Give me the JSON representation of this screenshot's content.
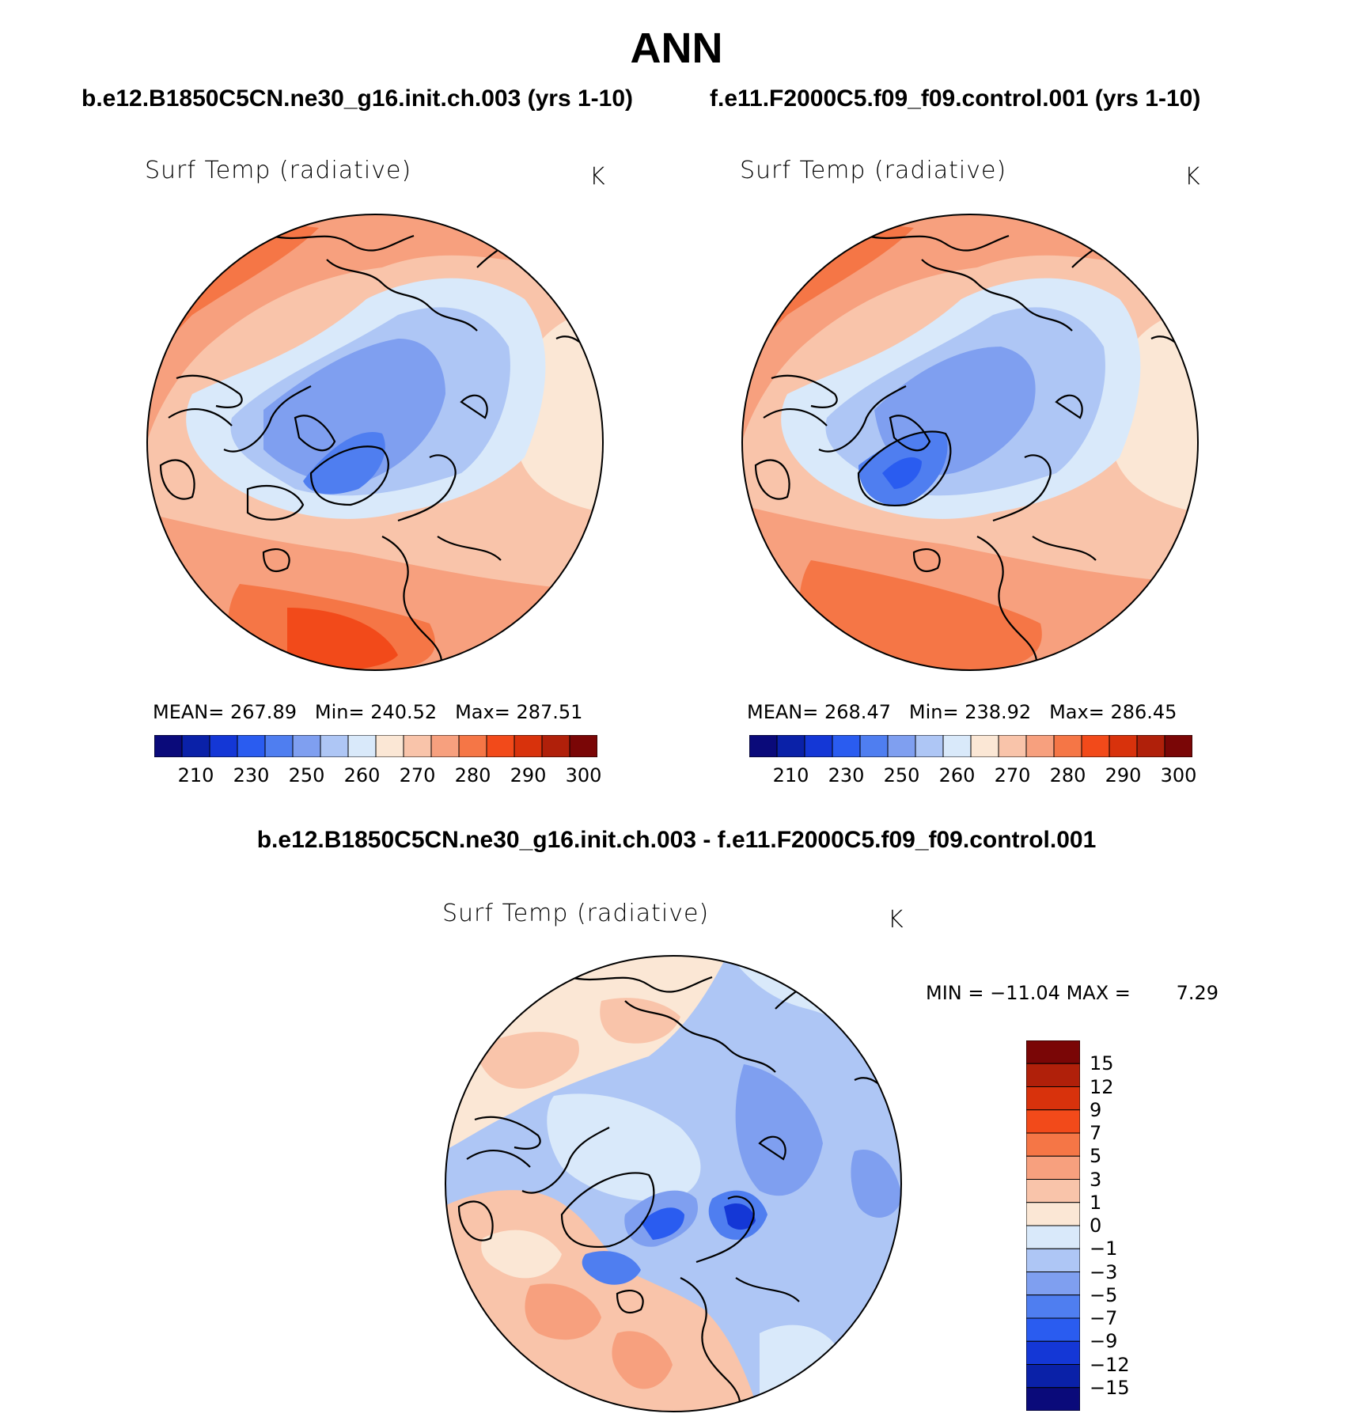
{
  "season": "ANN",
  "panels": {
    "left": {
      "case": "b.e12.B1850C5CN.ne30_g16.init.ch.003 (yrs 1-10)",
      "variable": "Surf Temp (radiative)",
      "units": "K",
      "mean_label": "MEAN=",
      "mean": "267.89",
      "min_label": "Min=",
      "min": "240.52",
      "max_label": "Max=",
      "max": "287.51"
    },
    "right": {
      "case": "f.e11.F2000C5.f09_f09.control.001 (yrs 1-10)",
      "variable": "Surf Temp (radiative)",
      "units": "K",
      "mean_label": "MEAN=",
      "mean": "268.47",
      "min_label": "Min=",
      "min": "238.92",
      "max_label": "Max=",
      "max": "286.45"
    },
    "diff": {
      "case": "b.e12.B1850C5CN.ne30_g16.init.ch.003 - f.e11.F2000C5.f09_f09.control.001",
      "variable": "Surf Temp (radiative)",
      "units": "K",
      "min_label": "MIN =",
      "min": "−11.04",
      "max_label": "MAX =",
      "max": "7.29"
    }
  },
  "colorbars": {
    "abs_colors": [
      "#0a0a7a",
      "#0a21a8",
      "#1437d6",
      "#2a5cf0",
      "#4f7ef0",
      "#7f9ff0",
      "#aec6f5",
      "#d9e9fa",
      "#fbe7d5",
      "#f9c4aa",
      "#f7a07e",
      "#f57646",
      "#f24a1a",
      "#d8320c",
      "#b0200a",
      "#7a0606"
    ],
    "abs_ticks": [
      "210",
      "230",
      "250",
      "260",
      "270",
      "280",
      "290",
      "300"
    ],
    "diff_colors": [
      "#0a0a7a",
      "#0a21a8",
      "#1437d6",
      "#2a5cf0",
      "#4f7ef0",
      "#7f9ff0",
      "#aec6f5",
      "#d9e9fa",
      "#fbe7d5",
      "#f9c4aa",
      "#f7a07e",
      "#f57646",
      "#f24a1a",
      "#d8320c",
      "#b0200a",
      "#7a0606"
    ],
    "diff_ticks": [
      "−15",
      "−12",
      "−9",
      "−7",
      "−5",
      "−3",
      "−1",
      "0",
      "1",
      "3",
      "5",
      "7",
      "9",
      "12",
      "15"
    ]
  }
}
